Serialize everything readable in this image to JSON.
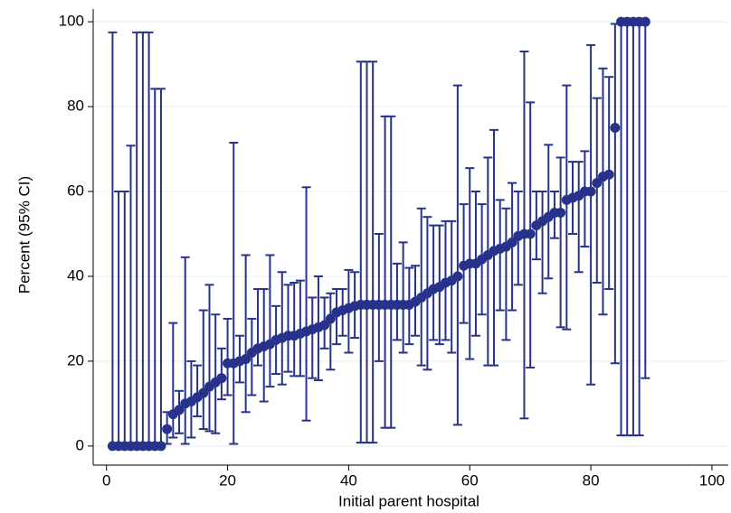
{
  "chart_data": {
    "type": "errorbar-scatter",
    "xlabel": "Initial parent hospital",
    "ylabel": "Percent (95% CI)",
    "xlim": [
      -2.2,
      102.7
    ],
    "ylim": [
      -4.5,
      103
    ],
    "xticks": [
      0,
      20,
      40,
      60,
      80,
      100
    ],
    "yticks": [
      0,
      20,
      40,
      60,
      80,
      100
    ],
    "grid": true,
    "series": [
      {
        "color": "#27338a",
        "x": [
          1,
          2,
          3,
          4,
          5,
          6,
          7,
          8,
          9,
          10,
          11,
          12,
          13,
          14,
          15,
          16,
          17,
          18,
          19,
          20,
          21,
          22,
          23,
          24,
          25,
          26,
          27,
          28,
          29,
          30,
          31,
          32,
          33,
          34,
          35,
          36,
          37,
          38,
          39,
          40,
          41,
          42,
          43,
          44,
          45,
          46,
          47,
          48,
          49,
          50,
          51,
          52,
          53,
          54,
          55,
          56,
          57,
          58,
          59,
          60,
          61,
          62,
          63,
          64,
          65,
          66,
          67,
          68,
          69,
          70,
          71,
          72,
          73,
          74,
          75,
          76,
          77,
          78,
          79,
          80,
          81,
          82,
          83,
          84,
          85,
          86,
          87,
          88,
          89
        ],
        "values": [
          0,
          0,
          0,
          0,
          0,
          0,
          0,
          0,
          0,
          4,
          7.5,
          8.5,
          10,
          10.5,
          11.5,
          12.5,
          14,
          15,
          16,
          19.5,
          19.5,
          20,
          20.5,
          22,
          23,
          23.5,
          24,
          25,
          25.5,
          26,
          26,
          26.5,
          27,
          27.5,
          28,
          28.5,
          30,
          31.5,
          32,
          32.5,
          33,
          33.3,
          33.3,
          33.3,
          33.3,
          33.3,
          33.3,
          33.3,
          33.3,
          33.3,
          34,
          35,
          36,
          37,
          37.5,
          38.5,
          39,
          40,
          42.5,
          43,
          43,
          44,
          45,
          46,
          46.5,
          47,
          48,
          49.5,
          50,
          50,
          52,
          53,
          54,
          55,
          55,
          58,
          58.5,
          59,
          60,
          60,
          62,
          63.5,
          64,
          75,
          100,
          100,
          100,
          100,
          100
        ],
        "ci_low": [
          0,
          0,
          0,
          0,
          0,
          0,
          0,
          0,
          0,
          0.5,
          2,
          3,
          0.5,
          2,
          7,
          4,
          3.5,
          3,
          11,
          12,
          0.5,
          15,
          8,
          12,
          19,
          10.5,
          14,
          17,
          14.5,
          17.5,
          16.5,
          16.5,
          6,
          16,
          15.5,
          23,
          18,
          24,
          26,
          22,
          25.5,
          0.8,
          0.8,
          0.8,
          20,
          4.3,
          4.3,
          25,
          22,
          24,
          26,
          19,
          18,
          25,
          24,
          25,
          22,
          5,
          29,
          20.5,
          26,
          31,
          19,
          19,
          32,
          25,
          32,
          38,
          6.5,
          18.5,
          44,
          36,
          39.5,
          49,
          28,
          27.5,
          50,
          41,
          47,
          14.5,
          38.5,
          31,
          37,
          19.5,
          2.5,
          2.5,
          2.5,
          2.5,
          16
        ],
        "ci_high": [
          97.5,
          60,
          60,
          70.8,
          97.5,
          97.5,
          97.5,
          84.2,
          84.2,
          8,
          29,
          13,
          44.5,
          20,
          19,
          32,
          38,
          31,
          23,
          30,
          71.5,
          26,
          45,
          30,
          37,
          37,
          45,
          33,
          41,
          38,
          38.5,
          39,
          61,
          35,
          40,
          35,
          36,
          37,
          37,
          41.5,
          41,
          90.6,
          90.6,
          90.6,
          50,
          77.7,
          77.7,
          43,
          48,
          42,
          42.5,
          56,
          54,
          52,
          52,
          53,
          53,
          85,
          57,
          65.5,
          60,
          57,
          68,
          74.5,
          58,
          56,
          62,
          60,
          93,
          81,
          60,
          60,
          71,
          60,
          68,
          85,
          67,
          67,
          69.5,
          94.5,
          82,
          89,
          87,
          99.5,
          100,
          100,
          100,
          100,
          100
        ]
      }
    ]
  }
}
